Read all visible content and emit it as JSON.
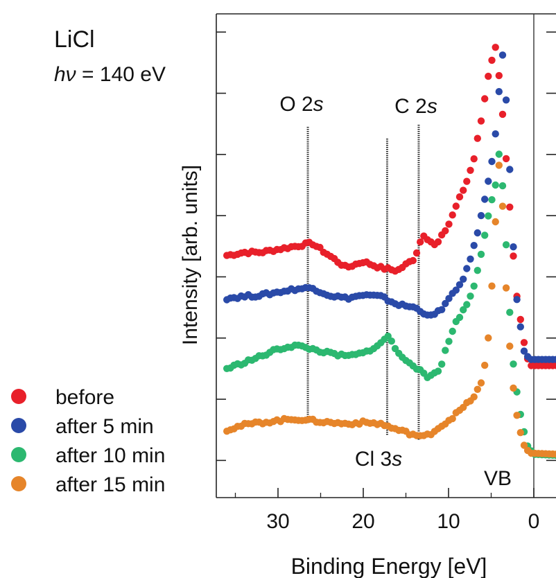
{
  "chart_data": {
    "type": "scatter",
    "title": "LiCl",
    "subtitle_symbol": "hν",
    "subtitle_value": "= 140 eV",
    "xlabel": "Binding Energy [eV]",
    "ylabel": "Intensity [arb. units]",
    "xlim": [
      37,
      -3
    ],
    "x_reversed": true,
    "ylim": [
      0,
      7.8
    ],
    "y_ticks": [
      0.8,
      1.8,
      2.8,
      3.8,
      4.8,
      5.8,
      6.8,
      7.8
    ],
    "y_tick_labels_shown": false,
    "x_ticks": [
      30,
      20,
      10,
      0
    ],
    "x_tick_labels": [
      "30",
      "20",
      "10",
      "0"
    ],
    "grid": false,
    "legend_position": "bottom-left",
    "reference_lines": [
      {
        "x": 26.5,
        "label_main": "O 2",
        "label_orbital": "s",
        "style": "dotted"
      },
      {
        "x": 17.2,
        "label_main": "Cl 3",
        "label_orbital": "s",
        "style": "dotted"
      },
      {
        "x": 13.5,
        "label_main": "C 2",
        "label_orbital": "s",
        "style": "dotted"
      }
    ],
    "vb_line": {
      "x": 0,
      "label": "VB"
    },
    "series": [
      {
        "name": "before",
        "color": "#e8202a",
        "points": [
          [
            36,
            4.15
          ],
          [
            34,
            4.2
          ],
          [
            32,
            4.2
          ],
          [
            30,
            4.25
          ],
          [
            28,
            4.3
          ],
          [
            26,
            4.35
          ],
          [
            24,
            4.15
          ],
          [
            22,
            3.95
          ],
          [
            20,
            4.05
          ],
          [
            18,
            3.95
          ],
          [
            16,
            3.9
          ],
          [
            14,
            4.1
          ],
          [
            13,
            4.5
          ],
          [
            11.5,
            4.3
          ],
          [
            10,
            4.65
          ],
          [
            9,
            5.0
          ],
          [
            8,
            5.3
          ],
          [
            7,
            5.75
          ],
          [
            6,
            6.5
          ],
          [
            5.2,
            7.2
          ],
          [
            4.5,
            7.55
          ],
          [
            4,
            7.0
          ],
          [
            3.5,
            6.2
          ],
          [
            3,
            5.3
          ],
          [
            2.5,
            4.3
          ],
          [
            2,
            3.5
          ],
          [
            1,
            2.6
          ],
          [
            0.5,
            2.35
          ],
          [
            -3,
            2.35
          ]
        ]
      },
      {
        "name": "after 5 min",
        "color": "#2a4aa8",
        "points": [
          [
            36,
            3.45
          ],
          [
            34,
            3.48
          ],
          [
            32,
            3.5
          ],
          [
            30,
            3.55
          ],
          [
            28,
            3.6
          ],
          [
            26,
            3.62
          ],
          [
            24,
            3.5
          ],
          [
            22,
            3.45
          ],
          [
            20,
            3.5
          ],
          [
            18,
            3.48
          ],
          [
            16,
            3.35
          ],
          [
            14,
            3.3
          ],
          [
            12,
            3.15
          ],
          [
            11,
            3.25
          ],
          [
            9,
            3.6
          ],
          [
            8,
            3.85
          ],
          [
            7,
            4.3
          ],
          [
            6,
            4.9
          ],
          [
            5,
            5.6
          ],
          [
            4.3,
            6.35
          ],
          [
            4,
            7.0
          ],
          [
            3.6,
            7.5
          ],
          [
            3.2,
            6.6
          ],
          [
            2.8,
            5.5
          ],
          [
            2.5,
            4.5
          ],
          [
            2,
            3.45
          ],
          [
            1.2,
            2.6
          ],
          [
            0.5,
            2.45
          ],
          [
            -3,
            2.45
          ]
        ]
      },
      {
        "name": "after 10 min",
        "color": "#2cb870",
        "points": [
          [
            36,
            2.3
          ],
          [
            34,
            2.4
          ],
          [
            32,
            2.5
          ],
          [
            30,
            2.62
          ],
          [
            28,
            2.68
          ],
          [
            26,
            2.62
          ],
          [
            24,
            2.55
          ],
          [
            22,
            2.5
          ],
          [
            20,
            2.55
          ],
          [
            18,
            2.7
          ],
          [
            17,
            2.85
          ],
          [
            16,
            2.55
          ],
          [
            14,
            2.35
          ],
          [
            12.5,
            2.15
          ],
          [
            11,
            2.3
          ],
          [
            10,
            2.75
          ],
          [
            9,
            3.1
          ],
          [
            8,
            3.3
          ],
          [
            7,
            3.65
          ],
          [
            6,
            4.3
          ],
          [
            5.2,
            4.9
          ],
          [
            4.5,
            5.3
          ],
          [
            4,
            5.9
          ],
          [
            3.5,
            5.0
          ],
          [
            3,
            3.7
          ],
          [
            2.7,
            2.9
          ],
          [
            2.3,
            2.2
          ],
          [
            1.5,
            1.5
          ],
          [
            0.8,
            1.05
          ],
          [
            0,
            0.9
          ],
          [
            -3,
            0.88
          ]
        ]
      },
      {
        "name": "after 15 min",
        "color": "#e6852a",
        "points": [
          [
            36,
            1.3
          ],
          [
            34,
            1.38
          ],
          [
            32,
            1.42
          ],
          [
            30,
            1.45
          ],
          [
            28,
            1.48
          ],
          [
            26,
            1.45
          ],
          [
            24,
            1.42
          ],
          [
            22,
            1.4
          ],
          [
            20,
            1.42
          ],
          [
            18,
            1.4
          ],
          [
            16,
            1.3
          ],
          [
            14,
            1.22
          ],
          [
            13,
            1.18
          ],
          [
            12,
            1.25
          ],
          [
            10,
            1.45
          ],
          [
            8,
            1.7
          ],
          [
            7,
            1.85
          ],
          [
            6,
            2.1
          ],
          [
            5.2,
            2.95
          ],
          [
            4.5,
            4.7
          ],
          [
            4,
            5.8
          ],
          [
            3.7,
            5.1
          ],
          [
            3.4,
            4.0
          ],
          [
            3,
            3.05
          ],
          [
            2.6,
            2.2
          ],
          [
            2,
            1.55
          ],
          [
            1.3,
            1.08
          ],
          [
            0.5,
            0.92
          ],
          [
            -3,
            0.9
          ]
        ]
      }
    ],
    "reference_line_label_layout_note": ""
  }
}
